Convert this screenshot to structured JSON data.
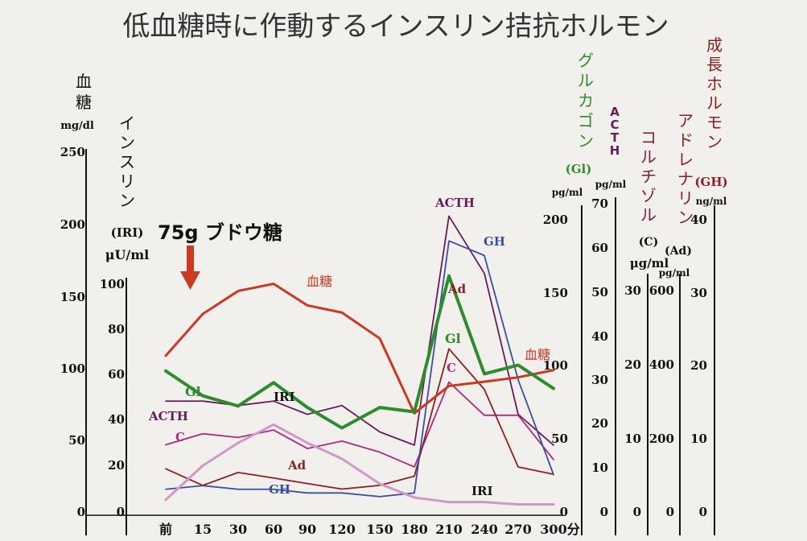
{
  "chart_data": {
    "type": "line",
    "title": "低血糖時に作動するインスリン拮抗ホルモン",
    "x": [
      "前",
      "15",
      "30",
      "60",
      "90",
      "120",
      "150",
      "180",
      "210",
      "240",
      "270",
      "300"
    ],
    "x_unit": "分",
    "annotation": {
      "text": "75g ブドウ糖",
      "at": "前"
    },
    "axes": [
      {
        "id": "glucose",
        "label": [
          "血",
          "糖"
        ],
        "unit": "mg/dl",
        "ticks": [
          "250",
          "200",
          "150",
          "100",
          "50",
          "0"
        ],
        "ylim": [
          0,
          250
        ]
      },
      {
        "id": "insulin",
        "label": "インスリン",
        "label_sub": "(IRI)",
        "unit": "μU/ml",
        "ticks": [
          "100",
          "80",
          "60",
          "40",
          "20",
          "0"
        ],
        "ylim": [
          0,
          100
        ]
      },
      {
        "id": "glucagon",
        "label": "グルカゴン",
        "label_sub": "(Gl)",
        "unit": "pg/ml",
        "ticks": [
          "200",
          "150",
          "100",
          "50",
          "0"
        ],
        "ylim": [
          0,
          200
        ],
        "color": "#2e8b2e"
      },
      {
        "id": "acth",
        "label": "ACTH",
        "unit": "pg/ml",
        "ticks": [
          "70",
          "60",
          "50",
          "40",
          "30",
          "20",
          "10",
          "0"
        ],
        "ylim": [
          0,
          70
        ],
        "color": "#6a1a5a"
      },
      {
        "id": "cortisol",
        "label": "コルチゾル",
        "label_sub": "(C)",
        "unit": "μg/ml",
        "ticks": [
          "30",
          "20",
          "10",
          "0"
        ],
        "ylim": [
          0,
          30
        ],
        "color": "#7a2046"
      },
      {
        "id": "adrenaline",
        "label": "アドレナリン",
        "label_sub": "(Ad)",
        "unit": "pg/ml",
        "ticks": [
          "600",
          "400",
          "200",
          "0"
        ],
        "ylim": [
          0,
          600
        ],
        "color": "#8b2020"
      },
      {
        "id": "gh",
        "label": "成長ホルモン",
        "label_sub": "(GH)",
        "unit": "ng/ml",
        "ticks": [
          "40",
          "30",
          "20",
          "10",
          "0"
        ],
        "ylim": [
          0,
          40
        ],
        "color": "#8b2020"
      }
    ],
    "series": [
      {
        "name": "血糖",
        "label2": "血糖",
        "axis": "glucose",
        "color": "#c83a22",
        "width": 3,
        "values": [
          108,
          137,
          153,
          158,
          143,
          138,
          120,
          68,
          87,
          90,
          93,
          98
        ]
      },
      {
        "name": "IRI",
        "label2": "IRI",
        "axis": "insulin",
        "color": "#d098c4",
        "width": 3,
        "values": [
          5,
          20,
          30,
          38,
          30,
          23,
          12,
          6,
          4,
          4,
          3,
          3
        ]
      },
      {
        "name": "Gl",
        "axis": "glucagon",
        "color": "#2e8b2e",
        "width": 4,
        "values": [
          96,
          79,
          72,
          88,
          71,
          57,
          71,
          68,
          161,
          94,
          100,
          84
        ]
      },
      {
        "name": "ACTH",
        "axis": "acth",
        "color": "#6a1a5a",
        "width": 1.8,
        "values": [
          25,
          25,
          24,
          25,
          22,
          24,
          18,
          15,
          67,
          54,
          22,
          15
        ]
      },
      {
        "name": "C",
        "axis": "cortisol",
        "color": "#b02880",
        "width": 1.8,
        "values": [
          9,
          10.5,
          10,
          11,
          8.5,
          9.5,
          8,
          6,
          17.5,
          13,
          13,
          7
        ]
      },
      {
        "name": "Ad",
        "axis": "adrenaline",
        "color": "#8b2020",
        "width": 1.8,
        "values": [
          115,
          70,
          105,
          90,
          75,
          60,
          70,
          95,
          440,
          330,
          120,
          100
        ]
      },
      {
        "name": "GH",
        "axis": "gh",
        "color": "#3a4fa0",
        "width": 1.8,
        "values": [
          3,
          3.5,
          3,
          3,
          2.5,
          2.5,
          2,
          2.5,
          37,
          35,
          18,
          5
        ]
      }
    ]
  }
}
